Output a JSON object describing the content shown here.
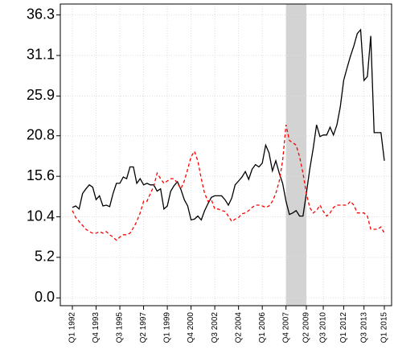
{
  "chart_data": {
    "type": "line",
    "categories": [
      "Q1 1992",
      null,
      null,
      null,
      null,
      null,
      null,
      "Q4 1993",
      null,
      null,
      null,
      null,
      null,
      null,
      "Q3 1995",
      null,
      null,
      null,
      null,
      null,
      null,
      "Q2 1997",
      null,
      null,
      null,
      null,
      null,
      null,
      "Q1 1999",
      null,
      null,
      null,
      null,
      null,
      null,
      "Q4 2000",
      null,
      null,
      null,
      null,
      null,
      null,
      "Q3 2002",
      null,
      null,
      null,
      null,
      null,
      null,
      "Q2 2004",
      null,
      null,
      null,
      null,
      null,
      null,
      "Q1 2006",
      null,
      null,
      null,
      null,
      null,
      null,
      "Q4 2007",
      null,
      null,
      null,
      null,
      null,
      "Q2 2009",
      null,
      null,
      null,
      null,
      "Q3 2010",
      null,
      null,
      null,
      null,
      null,
      "Q1 2012",
      null,
      null,
      null,
      null,
      null,
      "Q3 2013",
      null,
      null,
      null,
      null,
      null,
      "Q1 2015"
    ],
    "series": [
      {
        "color": "#000000",
        "dash": false,
        "values": [
          11.6,
          11.8,
          11.4,
          13.4,
          14.0,
          14.5,
          14.2,
          12.6,
          13.1,
          11.8,
          11.9,
          11.7,
          13.4,
          14.7,
          14.7,
          15.5,
          15.3,
          16.8,
          16.8,
          14.7,
          15.3,
          14.5,
          14.7,
          14.5,
          14.5,
          13.7,
          14.0,
          11.4,
          11.8,
          13.7,
          14.4,
          14.9,
          13.9,
          12.6,
          11.8,
          10.0,
          10.1,
          10.5,
          10.0,
          11.2,
          12.1,
          12.9,
          13.1,
          13.1,
          13.1,
          12.6,
          11.9,
          12.8,
          14.5,
          15.0,
          15.5,
          16.2,
          15.2,
          16.5,
          17.1,
          16.8,
          17.3,
          19.6,
          18.6,
          16.3,
          17.6,
          16.0,
          14.7,
          12.4,
          10.7,
          10.9,
          11.2,
          10.5,
          10.5,
          13.4,
          16.5,
          19.1,
          22.2,
          20.7,
          20.9,
          20.9,
          21.9,
          20.9,
          22.2,
          24.5,
          27.9,
          29.5,
          31.0,
          32.3,
          33.9,
          34.4,
          27.9,
          28.4,
          33.6,
          21.2,
          21.2,
          21.2,
          17.6
        ]
      },
      {
        "color": "#ff0000",
        "dash": true,
        "values": [
          11.2,
          10.3,
          9.8,
          9.3,
          8.8,
          8.5,
          8.3,
          8.3,
          8.5,
          8.3,
          8.5,
          8.1,
          7.8,
          7.4,
          7.8,
          8.1,
          8.1,
          8.3,
          9.0,
          9.8,
          10.9,
          12.4,
          12.4,
          13.4,
          14.3,
          16.0,
          15.3,
          14.7,
          15.0,
          15.3,
          15.3,
          14.7,
          14.0,
          15.0,
          16.5,
          18.1,
          18.8,
          17.6,
          15.3,
          13.4,
          12.4,
          12.6,
          11.4,
          11.4,
          11.2,
          11.1,
          10.5,
          9.8,
          10.1,
          10.3,
          10.8,
          10.9,
          11.2,
          11.6,
          11.9,
          11.9,
          11.8,
          11.6,
          11.8,
          12.4,
          13.4,
          15.0,
          17.6,
          22.2,
          20.2,
          19.9,
          19.6,
          18.1,
          16.0,
          13.4,
          11.6,
          10.9,
          11.2,
          11.9,
          11.1,
          10.5,
          10.9,
          11.6,
          11.9,
          11.9,
          11.9,
          11.9,
          12.4,
          11.9,
          10.9,
          10.9,
          10.9,
          10.5,
          8.8,
          8.8,
          8.8,
          9.1,
          8.3
        ]
      }
    ],
    "shade": {
      "from": 63,
      "to": 69,
      "color": "#d3d3d3"
    },
    "ylim": [
      -1.0,
      37.7
    ],
    "yticks": [
      {
        "value": 0,
        "label": "0.0"
      },
      5.2,
      10.4,
      15.6,
      20.8,
      25.9,
      31.1,
      36.3
    ],
    "grid": true
  }
}
